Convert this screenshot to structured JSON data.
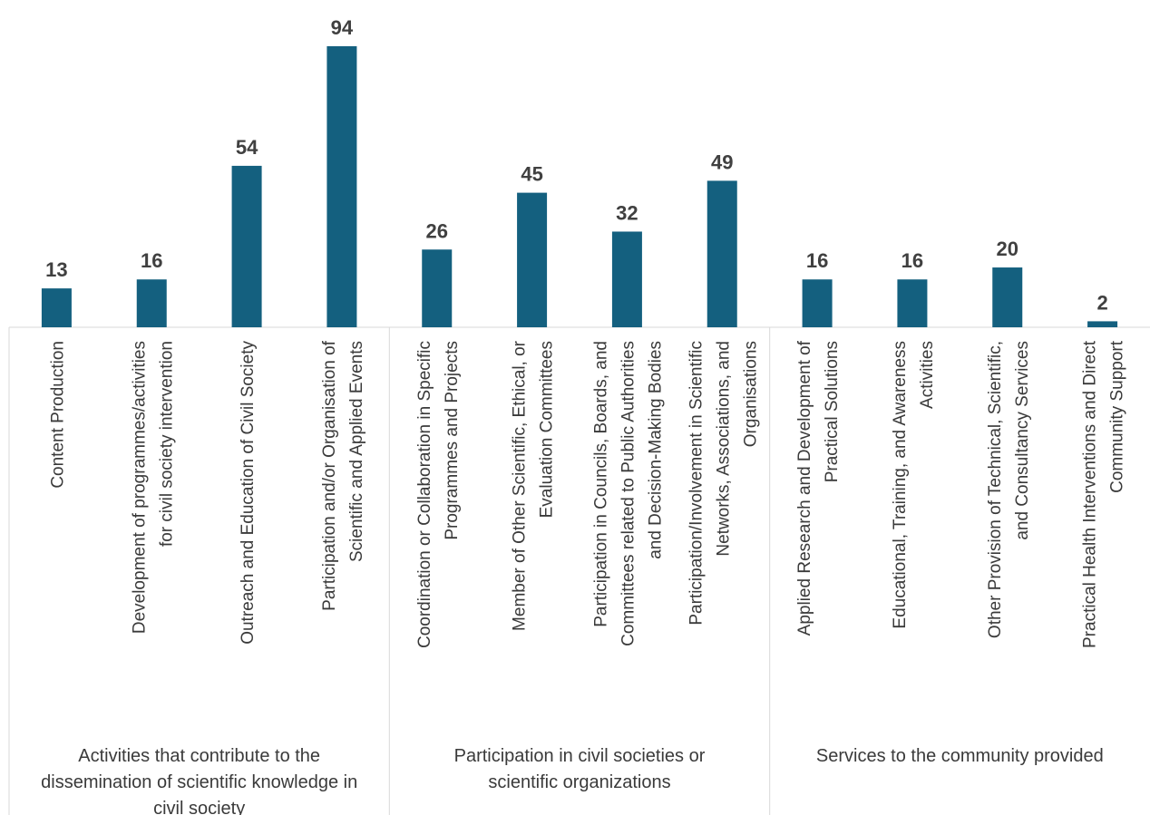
{
  "chart_data": {
    "type": "bar",
    "bar_color": "#14607f",
    "axis_color": "#d9d9d9",
    "ylim": [
      0,
      94
    ],
    "groups": [
      {
        "name_lines": [
          "Activities that contribute to the",
          "dissemination of scientific knowledge in",
          "civil society"
        ],
        "categories": [
          {
            "label_lines": [
              "Content Production"
            ],
            "value": 13
          },
          {
            "label_lines": [
              "Development of programmes/activities",
              "for civil society intervention"
            ],
            "value": 16
          },
          {
            "label_lines": [
              "Outreach and Education of Civil Society"
            ],
            "value": 54
          },
          {
            "label_lines": [
              "Participation and/or Organisation of",
              "Scientific and Applied Events"
            ],
            "value": 94
          }
        ]
      },
      {
        "name_lines": [
          "Participation in civil societies or",
          "scientific organizations"
        ],
        "categories": [
          {
            "label_lines": [
              "Coordination or Collaboration in Specific",
              "Programmes and Projects"
            ],
            "value": 26
          },
          {
            "label_lines": [
              "Member of Other Scientific, Ethical, or",
              "Evaluation Committees"
            ],
            "value": 45
          },
          {
            "label_lines": [
              "Participation in Councils, Boards, and",
              "Committees related to Public Authorities",
              "and Decision-Making Bodies"
            ],
            "value": 32
          },
          {
            "label_lines": [
              "Participation/Involvement in Scientific",
              "Networks, Associations, and",
              "Organisations"
            ],
            "value": 49
          }
        ]
      },
      {
        "name_lines": [
          "Services to the community provided"
        ],
        "categories": [
          {
            "label_lines": [
              "Applied Research and Development of",
              "Practical Solutions"
            ],
            "value": 16
          },
          {
            "label_lines": [
              "Educational, Training, and Awareness",
              "Activities"
            ],
            "value": 16
          },
          {
            "label_lines": [
              "Other Provision of Technical, Scientific,",
              "and Consultancy Services"
            ],
            "value": 20
          },
          {
            "label_lines": [
              "Practical Health Interventions and Direct",
              "Community Support"
            ],
            "value": 2
          }
        ]
      }
    ]
  }
}
